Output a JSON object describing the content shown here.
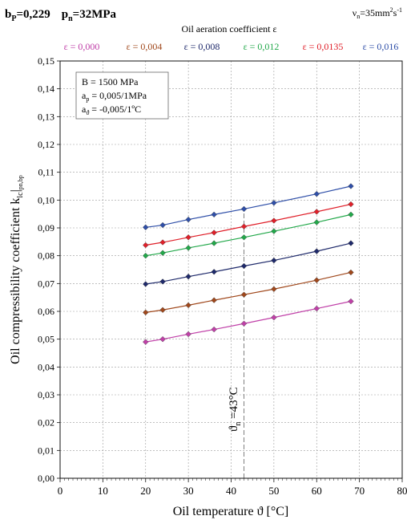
{
  "header": {
    "bp": "b",
    "bp_sub": "P",
    "bp_value": "=0,229",
    "pn": "p",
    "pn_sub": "n",
    "pn_value": "=32MPa",
    "visc": "ν",
    "visc_sub": "n",
    "visc_value": "=35mm",
    "visc_exp1": "2",
    "visc_mid": "s",
    "visc_exp2": "-1"
  },
  "legend_title": "Oil aeration coefficient ε",
  "info_box": {
    "line1": "B = 1500 MPa",
    "line2_a": "a",
    "line2_sub": "p",
    "line2_b": " = 0,005/1MPa",
    "line3_a": "a",
    "line3_sub": "ϑ",
    "line3_b": " = -0,005/1ºC"
  },
  "annotation": {
    "main": "ϑ",
    "sub": "n",
    "rest": " =43°C"
  },
  "colors": {
    "eps0": "#c040a8",
    "eps1": "#a0481c",
    "eps2": "#1f2a6b",
    "eps3": "#22a84a",
    "eps4": "#e0202a",
    "eps5": "#2f4fa8",
    "grid": "#9a9a9a",
    "marker_line": "#808080"
  },
  "chart_data": {
    "type": "line",
    "xlabel": "Oil temperature ϑ   [°C]",
    "ylabel_main": "Oil compressibility coefficient k",
    "ylabel_sub": "lc",
    "ylabel_tail": "|",
    "ylabel_subtail": "pn,bp",
    "xlim": [
      0,
      80
    ],
    "ylim": [
      0,
      0.15
    ],
    "x_ticks": [
      "0",
      "10",
      "20",
      "30",
      "40",
      "50",
      "60",
      "70",
      "80"
    ],
    "y_ticks": [
      "0,00",
      "0,01",
      "0,02",
      "0,03",
      "0,04",
      "0,05",
      "0,06",
      "0,07",
      "0,08",
      "0,09",
      "0,10",
      "0,11",
      "0,12",
      "0,13",
      "0,14",
      "0,15"
    ],
    "grid": true,
    "legend_position": "top",
    "vertical_marker_x": 43,
    "x": [
      20,
      24,
      30,
      36,
      43,
      50,
      60,
      68
    ],
    "series": [
      {
        "name": "ε = 0,000",
        "color_key": "eps0",
        "values": [
          0.049,
          0.05,
          0.0518,
          0.0535,
          0.0556,
          0.0578,
          0.061,
          0.0636
        ]
      },
      {
        "name": "ε = 0,004",
        "color_key": "eps1",
        "values": [
          0.0596,
          0.0605,
          0.0622,
          0.064,
          0.066,
          0.068,
          0.0712,
          0.074
        ]
      },
      {
        "name": "ε = 0,008",
        "color_key": "eps2",
        "values": [
          0.0698,
          0.0707,
          0.0725,
          0.0742,
          0.0763,
          0.0783,
          0.0816,
          0.0845
        ]
      },
      {
        "name": "ε = 0,012",
        "color_key": "eps3",
        "values": [
          0.08,
          0.081,
          0.0828,
          0.0845,
          0.0866,
          0.0888,
          0.092,
          0.0948
        ]
      },
      {
        "name": "ε = 0,0135",
        "color_key": "eps4",
        "values": [
          0.0838,
          0.0848,
          0.0866,
          0.0883,
          0.0905,
          0.0926,
          0.0958,
          0.0985
        ]
      },
      {
        "name": "ε = 0,016",
        "color_key": "eps5",
        "values": [
          0.0902,
          0.091,
          0.093,
          0.0948,
          0.0968,
          0.099,
          0.1022,
          0.105
        ]
      }
    ]
  }
}
